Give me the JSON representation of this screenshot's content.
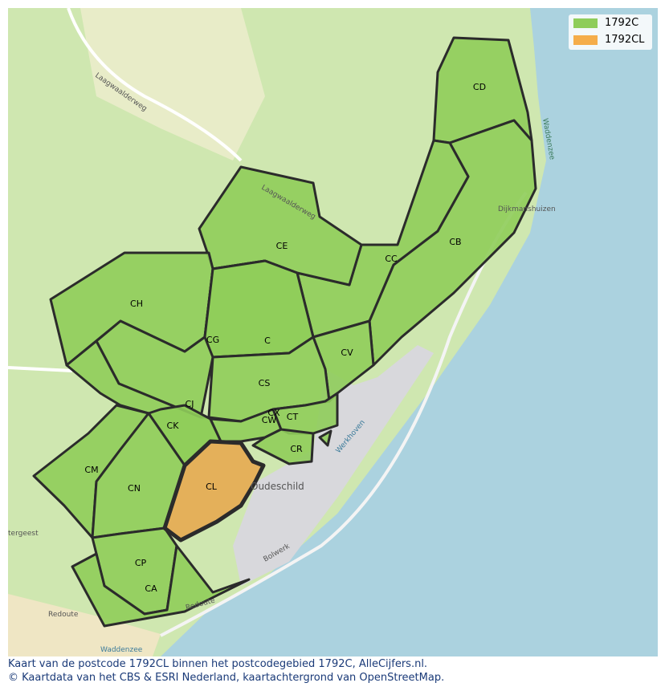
{
  "legend": {
    "items": [
      {
        "label": "1792C",
        "color": "#8fcd5a"
      },
      {
        "label": "1792CL",
        "color": "#f5ad4a"
      }
    ]
  },
  "areas": [
    "CD",
    "CE",
    "CC",
    "CB",
    "CH",
    "CG",
    "C",
    "CV",
    "CS",
    "CJ",
    "CK",
    "CW",
    "CX",
    "CT",
    "CR",
    "CM",
    "CN",
    "CL",
    "CP",
    "CA"
  ],
  "highlight": "CL",
  "place_labels": {
    "road1": "Laagwaalderweg",
    "road2": "Laagwaalderweg",
    "sea1": "Waddenzee",
    "sea2": "Waddenzee",
    "hamlet": "Dijkmanshuizen",
    "town": "Oudeschild",
    "redoute": "Redoute",
    "redoute2": "Redoute",
    "bolwerk": "Bolwerk",
    "werkhoven": "Werkhoven",
    "geest": "tergeest"
  },
  "caption": {
    "line1": "Kaart van de postcode 1792CL binnen het postcodegebied 1792C, AlleCijfers.nl.",
    "line2": "© Kaartdata van het CBS & ESRI Nederland, kaartachtergrond van OpenStreetMap."
  }
}
